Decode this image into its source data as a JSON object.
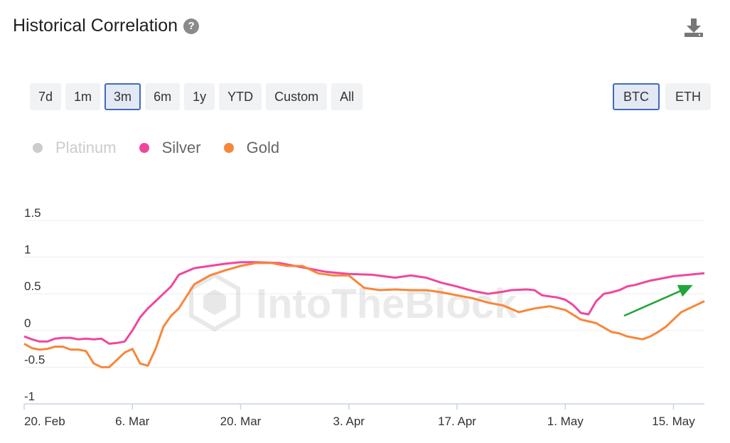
{
  "header": {
    "title": "Historical Correlation"
  },
  "range_buttons": [
    {
      "label": "7d",
      "active": false
    },
    {
      "label": "1m",
      "active": false
    },
    {
      "label": "3m",
      "active": true
    },
    {
      "label": "6m",
      "active": false
    },
    {
      "label": "1y",
      "active": false
    },
    {
      "label": "YTD",
      "active": false
    },
    {
      "label": "Custom",
      "active": false
    },
    {
      "label": "All",
      "active": false
    }
  ],
  "asset_buttons": [
    {
      "label": "BTC",
      "active": true
    },
    {
      "label": "ETH",
      "active": false
    }
  ],
  "watermark": "IntoTheBlock",
  "chart_data": {
    "type": "line",
    "title": "",
    "xlabel": "",
    "ylabel": "",
    "ylim": [
      -1,
      1.5
    ],
    "yticks": [
      "1.5",
      "1",
      "0.5",
      "0",
      "-0.5",
      "-1"
    ],
    "xticks": [
      "20. Feb",
      "6. Mar",
      "20. Mar",
      "3. Apr",
      "17. Apr",
      "1. May",
      "15. May"
    ],
    "x_range_days": [
      0,
      88
    ],
    "legend": {
      "placement": "top-left",
      "entries": [
        {
          "name": "Platinum",
          "color": "#cccccc",
          "hidden": true
        },
        {
          "name": "Silver",
          "color": "#f0479d"
        },
        {
          "name": "Gold",
          "color": "#f7873a"
        }
      ]
    },
    "grid": true,
    "series": [
      {
        "name": "Silver",
        "color": "#f0479d",
        "x": [
          0,
          1,
          2,
          3,
          4,
          5,
          6,
          7,
          8,
          9,
          10,
          11,
          12,
          13,
          14,
          15,
          16,
          17,
          18,
          19,
          20,
          22,
          24,
          26,
          28,
          30,
          33,
          36,
          39,
          42,
          45,
          48,
          50,
          52,
          54,
          56,
          58,
          60,
          62,
          63,
          65,
          66,
          67,
          69,
          70,
          71,
          72,
          73,
          74,
          75,
          76,
          77,
          78,
          79,
          80,
          81,
          82,
          83,
          84,
          85,
          86,
          87,
          88
        ],
        "y": [
          -0.08,
          -0.12,
          -0.15,
          -0.15,
          -0.11,
          -0.1,
          -0.1,
          -0.12,
          -0.11,
          -0.12,
          -0.11,
          -0.18,
          -0.17,
          -0.15,
          0.0,
          0.18,
          0.3,
          0.4,
          0.5,
          0.6,
          0.76,
          0.85,
          0.88,
          0.91,
          0.93,
          0.93,
          0.92,
          0.86,
          0.8,
          0.77,
          0.76,
          0.72,
          0.75,
          0.72,
          0.65,
          0.6,
          0.54,
          0.5,
          0.53,
          0.55,
          0.56,
          0.55,
          0.48,
          0.45,
          0.42,
          0.35,
          0.24,
          0.22,
          0.4,
          0.5,
          0.52,
          0.55,
          0.6,
          0.62,
          0.65,
          0.68,
          0.7,
          0.72,
          0.74,
          0.75,
          0.76,
          0.77,
          0.78
        ]
      },
      {
        "name": "Gold",
        "color": "#f7873a",
        "x": [
          0,
          1,
          2,
          3,
          4,
          5,
          6,
          7,
          8,
          9,
          10,
          11,
          12,
          13,
          14,
          15,
          16,
          17,
          18,
          19,
          20,
          22,
          24,
          26,
          28,
          30,
          32,
          34,
          36,
          38,
          40,
          42,
          44,
          46,
          48,
          50,
          52,
          54,
          56,
          58,
          60,
          62,
          64,
          66,
          68,
          70,
          72,
          74,
          75,
          76,
          77,
          78,
          79,
          80,
          81,
          82,
          83,
          84,
          85,
          86,
          87,
          88
        ],
        "y": [
          -0.18,
          -0.24,
          -0.26,
          -0.25,
          -0.22,
          -0.22,
          -0.26,
          -0.26,
          -0.28,
          -0.45,
          -0.5,
          -0.5,
          -0.4,
          -0.3,
          -0.25,
          -0.45,
          -0.48,
          -0.25,
          0.05,
          0.2,
          0.3,
          0.63,
          0.75,
          0.82,
          0.88,
          0.92,
          0.92,
          0.88,
          0.88,
          0.78,
          0.75,
          0.75,
          0.58,
          0.55,
          0.56,
          0.55,
          0.55,
          0.52,
          0.48,
          0.44,
          0.38,
          0.34,
          0.25,
          0.3,
          0.33,
          0.28,
          0.15,
          0.1,
          0.04,
          -0.02,
          -0.04,
          -0.08,
          -0.1,
          -0.12,
          -0.08,
          -0.02,
          0.05,
          0.15,
          0.25,
          0.3,
          0.35,
          0.4
        ]
      }
    ],
    "annotation": {
      "type": "arrow",
      "color": "#22a53a"
    }
  }
}
